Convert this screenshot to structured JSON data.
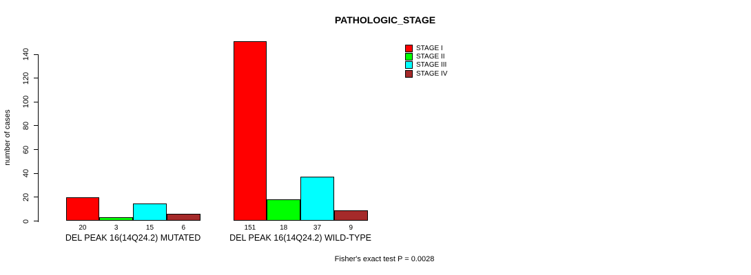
{
  "chart_data": {
    "type": "bar",
    "title": "PATHOLOGIC_STAGE",
    "ylabel": "number of cases",
    "yticks": [
      0,
      20,
      40,
      60,
      80,
      100,
      120,
      140
    ],
    "ylim": [
      0,
      151
    ],
    "grid": false,
    "legend_position": "top-right",
    "series": [
      {
        "name": "STAGE I",
        "color": "#FF0000"
      },
      {
        "name": "STAGE II",
        "color": "#00FF00"
      },
      {
        "name": "STAGE III",
        "color": "#00FFFF"
      },
      {
        "name": "STAGE IV",
        "color": "#A52A2A"
      }
    ],
    "groups": [
      {
        "label": "DEL PEAK 16(14Q24.2) MUTATED",
        "values": [
          20,
          3,
          15,
          6
        ]
      },
      {
        "label": "DEL PEAK 16(14Q24.2) WILD-TYPE",
        "values": [
          151,
          18,
          37,
          9
        ]
      }
    ],
    "annotation": "Fisher's exact test P = 0.0028"
  }
}
